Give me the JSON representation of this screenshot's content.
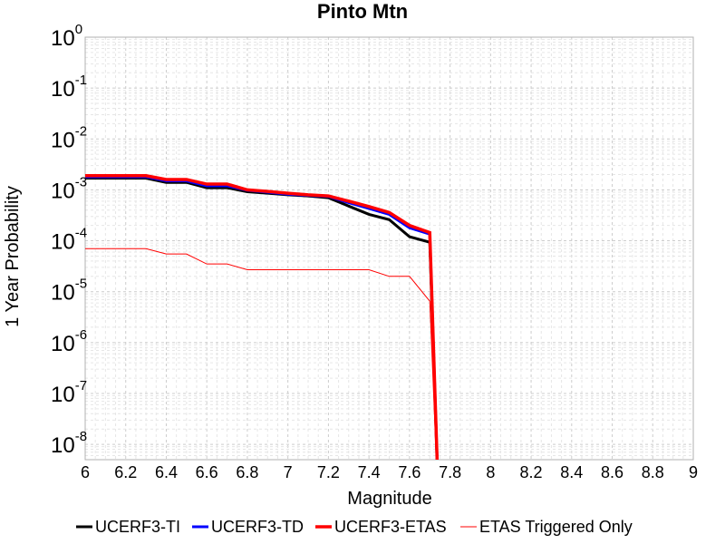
{
  "chart_data": {
    "type": "line",
    "title": "Pinto Mtn",
    "xlabel": "Magnitude",
    "ylabel": "1 Year Probability",
    "xlim": [
      6,
      9
    ],
    "ylim": [
      5e-09,
      1
    ],
    "yscale": "log",
    "grid": true,
    "legend_position": "bottom",
    "x_ticks": [
      "6",
      "6.2",
      "6.4",
      "6.6",
      "6.8",
      "7",
      "7.2",
      "7.4",
      "7.6",
      "7.8",
      "8",
      "8.2",
      "8.4",
      "8.6",
      "8.8",
      "9"
    ],
    "y_ticks": [
      {
        "base": "10",
        "exp": "0",
        "value": 1
      },
      {
        "base": "10",
        "exp": "-1",
        "value": 0.1
      },
      {
        "base": "10",
        "exp": "-2",
        "value": 0.01
      },
      {
        "base": "10",
        "exp": "-3",
        "value": 0.001
      },
      {
        "base": "10",
        "exp": "-4",
        "value": 0.0001
      },
      {
        "base": "10",
        "exp": "-5",
        "value": 1e-05
      },
      {
        "base": "10",
        "exp": "-6",
        "value": 1e-06
      },
      {
        "base": "10",
        "exp": "-7",
        "value": 1e-07
      },
      {
        "base": "10",
        "exp": "-8",
        "value": 1e-08
      }
    ],
    "series": [
      {
        "name": "UCERF3-TI",
        "color": "#000000",
        "width": 3,
        "x": [
          6.0,
          6.1,
          6.2,
          6.3,
          6.4,
          6.5,
          6.6,
          6.7,
          6.8,
          6.9,
          7.0,
          7.1,
          7.2,
          7.3,
          7.4,
          7.5,
          7.6,
          7.7,
          7.75
        ],
        "y": [
          0.0017,
          0.0017,
          0.0017,
          0.0017,
          0.0014,
          0.0014,
          0.0011,
          0.0011,
          0.00092,
          0.00086,
          0.0008,
          0.00076,
          0.0007,
          0.00048,
          0.00033,
          0.00026,
          0.00012,
          9.35e-05,
          1e-10
        ]
      },
      {
        "name": "UCERF3-TD",
        "color": "#0000ff",
        "width": 3,
        "x": [
          6.0,
          6.1,
          6.2,
          6.3,
          6.4,
          6.5,
          6.6,
          6.7,
          6.8,
          6.9,
          7.0,
          7.1,
          7.2,
          7.3,
          7.4,
          7.5,
          7.6,
          7.7,
          7.75
        ],
        "y": [
          0.0018,
          0.0018,
          0.0018,
          0.0018,
          0.0015,
          0.0015,
          0.0012,
          0.0012,
          0.00098,
          0.0009,
          0.00082,
          0.00078,
          0.00074,
          0.00056,
          0.00043,
          0.00033,
          0.00018,
          0.000135,
          1e-10
        ]
      },
      {
        "name": "UCERF3-ETAS",
        "color": "#ff0000",
        "width": 3.5,
        "x": [
          6.0,
          6.1,
          6.2,
          6.3,
          6.4,
          6.5,
          6.6,
          6.7,
          6.8,
          6.9,
          7.0,
          7.1,
          7.2,
          7.3,
          7.4,
          7.5,
          7.6,
          7.7,
          7.75
        ],
        "y": [
          0.0019,
          0.0019,
          0.0019,
          0.0019,
          0.0016,
          0.0016,
          0.0013,
          0.0013,
          0.001,
          0.00093,
          0.00086,
          0.0008,
          0.00076,
          0.0006,
          0.00047,
          0.00036,
          0.0002,
          0.000145,
          1e-10
        ]
      },
      {
        "name": "ETAS Triggered Only",
        "color": "#ff0000",
        "width": 1,
        "x": [
          6.0,
          6.1,
          6.2,
          6.3,
          6.4,
          6.5,
          6.6,
          6.7,
          6.8,
          6.9,
          7.0,
          7.1,
          7.2,
          7.3,
          7.4,
          7.5,
          7.6,
          7.7,
          7.75
        ],
        "y": [
          7e-05,
          7e-05,
          7e-05,
          7e-05,
          5.5e-05,
          5.5e-05,
          3.5e-05,
          3.5e-05,
          2.7e-05,
          2.7e-05,
          2.7e-05,
          2.7e-05,
          2.7e-05,
          2.7e-05,
          2.7e-05,
          2e-05,
          2e-05,
          6.5e-06,
          1e-10
        ]
      }
    ]
  }
}
